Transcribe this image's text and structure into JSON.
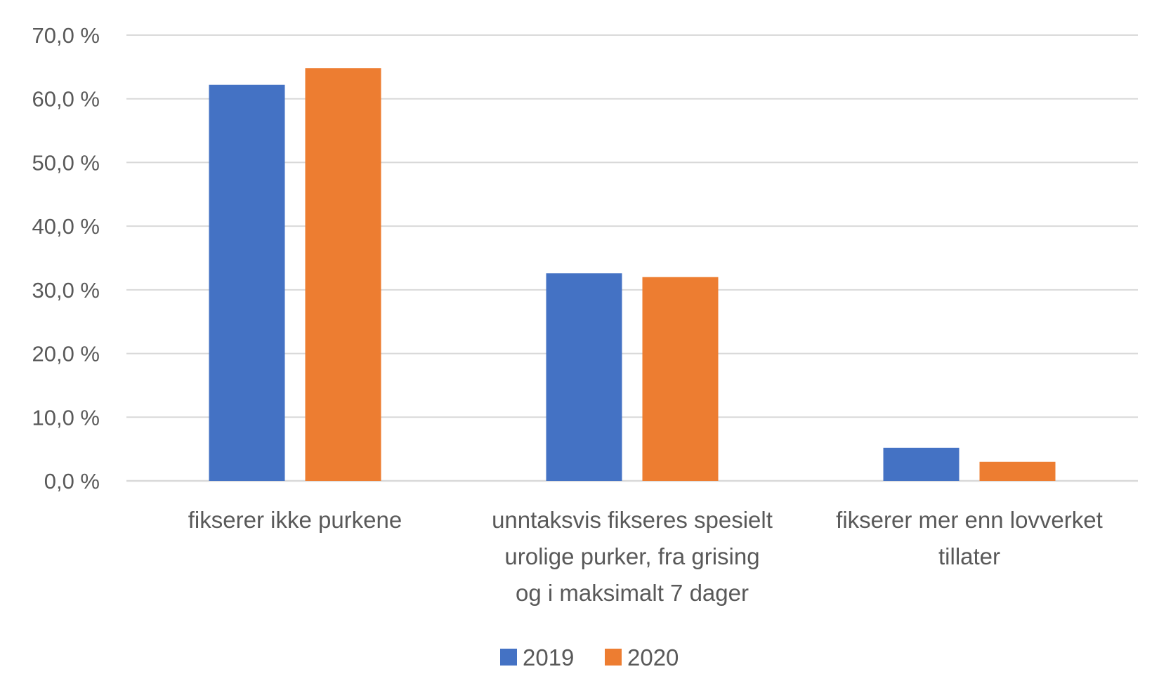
{
  "chart_data": {
    "type": "bar",
    "title": "",
    "xlabel": "",
    "ylabel": "",
    "ylim": [
      0,
      70
    ],
    "y_ticks": [
      0,
      10,
      20,
      30,
      40,
      50,
      60,
      70
    ],
    "y_tick_labels": [
      "0,0 %",
      "10,0 %",
      "20,0 %",
      "30,0 %",
      "40,0 %",
      "50,0 %",
      "60,0 %",
      "70,0 %"
    ],
    "grid": true,
    "legend_position": "bottom",
    "categories": [
      "fikserer ikke purkene",
      "unntaksvis fikseres spesielt urolige purker, fra grising og i maksimalt 7 dager",
      "fikserer mer enn lovverket tillater"
    ],
    "category_label_lines": [
      [
        "fikserer ikke purkene"
      ],
      [
        "unntaksvis fikseres spesielt",
        "urolige purker, fra grising",
        "og i maksimalt 7 dager"
      ],
      [
        "fikserer mer enn lovverket",
        "tillater"
      ]
    ],
    "series": [
      {
        "name": "2019",
        "color": "#4472c4",
        "values": [
          62.2,
          32.6,
          5.2
        ]
      },
      {
        "name": "2020",
        "color": "#ed7d31",
        "values": [
          64.8,
          32.0,
          3.0
        ]
      }
    ]
  }
}
